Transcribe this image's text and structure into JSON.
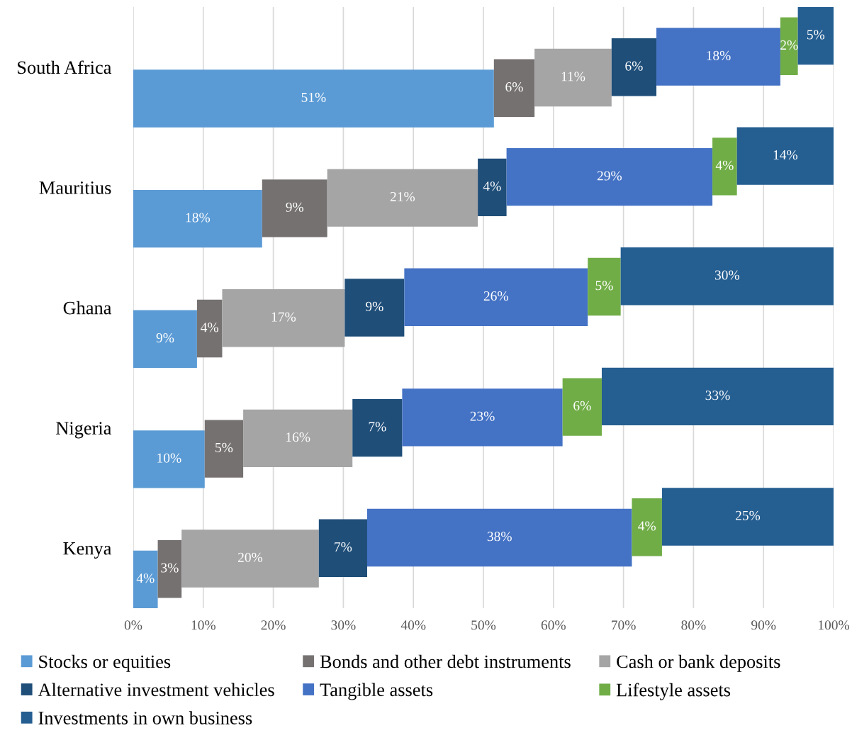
{
  "chart_data": {
    "type": "bar",
    "orientation": "horizontal",
    "stacked": true,
    "categories": [
      "South Africa",
      "Mauritius",
      "Ghana",
      "Nigeria",
      "Kenya"
    ],
    "series": [
      {
        "name": "Stocks or equities",
        "color": "#5b9bd5",
        "values": [
          51.5,
          18.4,
          9.1,
          10.2,
          3.5
        ],
        "value_labels": [
          "51%",
          "18%",
          "9%",
          "10%",
          "4%"
        ]
      },
      {
        "name": "Bonds and other debt instruments",
        "color": "#767171",
        "values": [
          5.8,
          9.3,
          3.6,
          5.5,
          3.4
        ],
        "value_labels": [
          "6%",
          "9%",
          "4%",
          "5%",
          "3%"
        ]
      },
      {
        "name": "Cash or bank deposits",
        "color": "#a5a5a5",
        "values": [
          11.0,
          21.5,
          17.5,
          15.6,
          19.6
        ],
        "value_labels": [
          "11%",
          "21%",
          "17%",
          "16%",
          "20%"
        ]
      },
      {
        "name": "Alternative investment vehicles",
        "color": "#1f4e79",
        "values": [
          6.4,
          4.1,
          8.5,
          7.1,
          6.9
        ],
        "value_labels": [
          "6%",
          "4%",
          "9%",
          "7%",
          "7%"
        ]
      },
      {
        "name": "Tangible assets",
        "color": "#4472c4",
        "values": [
          17.7,
          29.4,
          26.2,
          22.9,
          37.8
        ],
        "value_labels": [
          "18%",
          "29%",
          "26%",
          "23%",
          "38%"
        ]
      },
      {
        "name": "Lifestyle assets",
        "color": "#70ad47",
        "values": [
          2.5,
          3.5,
          4.7,
          5.6,
          4.3
        ],
        "value_labels": [
          "2%",
          "4%",
          "5%",
          "6%",
          "4%"
        ]
      },
      {
        "name": "Investments in own business",
        "color": "#255e91",
        "values": [
          5.1,
          13.8,
          30.4,
          33.1,
          24.5
        ],
        "value_labels": [
          "5%",
          "14%",
          "30%",
          "33%",
          "25%"
        ]
      }
    ],
    "xlim": [
      0,
      100
    ],
    "xticks": [
      {
        "value": 0,
        "label": "0%"
      },
      {
        "value": 10,
        "label": "10%"
      },
      {
        "value": 20,
        "label": "20%"
      },
      {
        "value": 30,
        "label": "30%"
      },
      {
        "value": 40,
        "label": "40%"
      },
      {
        "value": 50,
        "label": "50%"
      },
      {
        "value": 60,
        "label": "60%"
      },
      {
        "value": 70,
        "label": "70%"
      },
      {
        "value": 80,
        "label": "80%"
      },
      {
        "value": 90,
        "label": "90%"
      },
      {
        "value": 100,
        "label": "100%"
      }
    ],
    "grid": "x",
    "legend": "bottom"
  }
}
